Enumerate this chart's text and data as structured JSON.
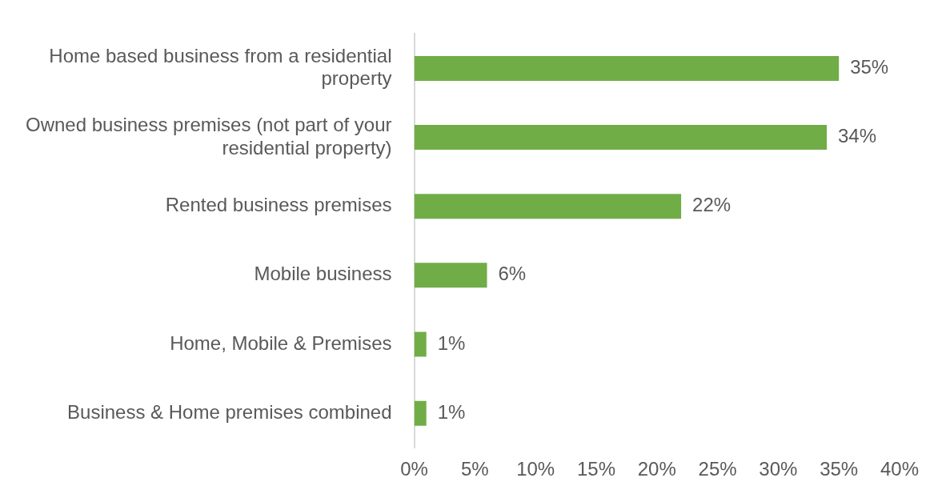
{
  "chart_data": {
    "type": "bar",
    "orientation": "horizontal",
    "categories": [
      "Home based business from a residential property",
      "Owned business premises (not part of your residential property)",
      "Rented business premises",
      "Mobile business",
      "Home, Mobile & Premises",
      "Business & Home premises combined"
    ],
    "values": [
      35,
      34,
      22,
      6,
      1,
      1
    ],
    "value_labels": [
      "35%",
      "34%",
      "22%",
      "6%",
      "1%",
      "1%"
    ],
    "color": "#70ad47",
    "xlim": [
      0,
      40
    ],
    "xticks": [
      {
        "value": 0,
        "label": "0%"
      },
      {
        "value": 5,
        "label": "5%"
      },
      {
        "value": 10,
        "label": "10%"
      },
      {
        "value": 15,
        "label": "15%"
      },
      {
        "value": 20,
        "label": "20%"
      },
      {
        "value": 25,
        "label": "25%"
      },
      {
        "value": 30,
        "label": "30%"
      },
      {
        "value": 35,
        "label": "35%"
      },
      {
        "value": 40,
        "label": "40%"
      }
    ],
    "grid": false,
    "legend": false
  }
}
